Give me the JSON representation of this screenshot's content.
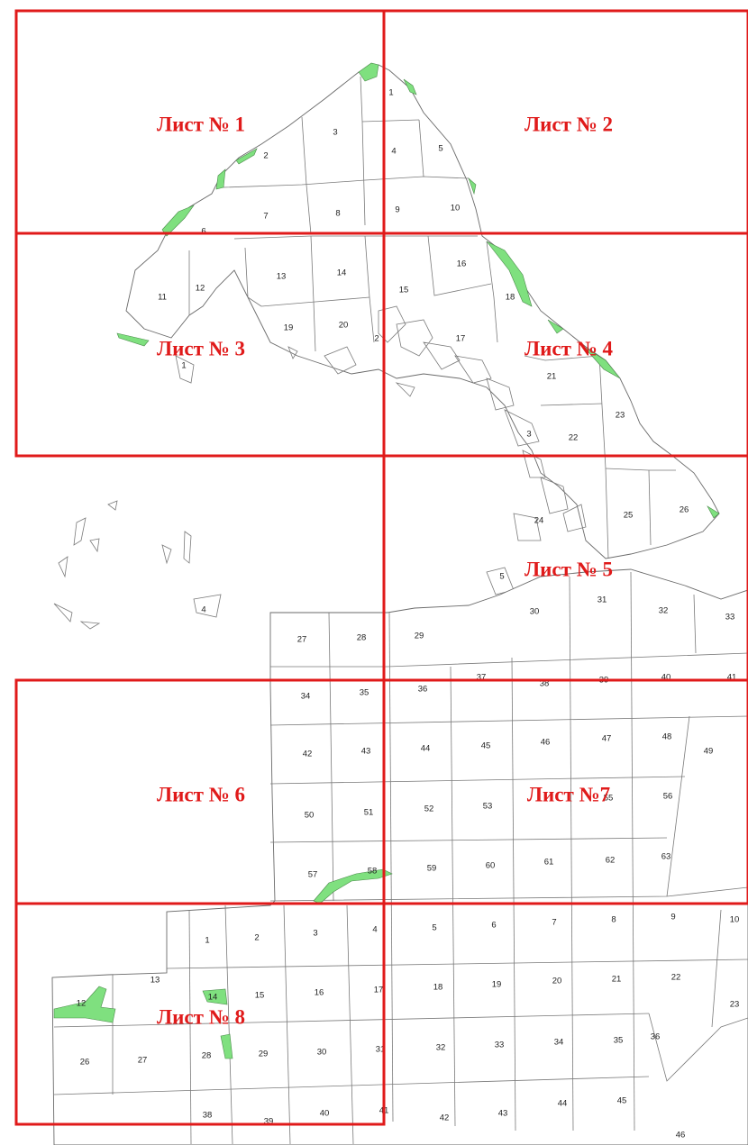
{
  "colors": {
    "frame": "#e01a1a",
    "label": "#e01a1a",
    "forest": "#7fe07f",
    "outline": "#7a7a7a",
    "background": "#ffffff"
  },
  "sheets": [
    {
      "id": "s1",
      "label": "Лист № 1"
    },
    {
      "id": "s2",
      "label": "Лист № 2"
    },
    {
      "id": "s3",
      "label": "Лист № 3"
    },
    {
      "id": "s4",
      "label": "Лист № 4"
    },
    {
      "id": "s5",
      "label": "Лист № 5"
    },
    {
      "id": "s6",
      "label": "Лист № 6"
    },
    {
      "id": "s7",
      "label": "Лист №7"
    },
    {
      "id": "s8",
      "label": "Лист № 8"
    }
  ],
  "plot_numbers": [
    "1",
    "2",
    "3",
    "4",
    "5",
    "6",
    "7",
    "8",
    "9",
    "10",
    "11",
    "12",
    "13",
    "14",
    "15",
    "16",
    "17",
    "18",
    "19",
    "20",
    "21",
    "22",
    "23",
    "24",
    "25",
    "26",
    "27",
    "28",
    "29",
    "30",
    "31",
    "32",
    "33",
    "34",
    "35",
    "36",
    "37",
    "38",
    "39",
    "40",
    "41",
    "42",
    "43",
    "44",
    "45",
    "46",
    "47",
    "48",
    "49",
    "50",
    "51",
    "52",
    "53",
    "55",
    "56",
    "57",
    "58",
    "59",
    "60",
    "61",
    "62",
    "63"
  ]
}
